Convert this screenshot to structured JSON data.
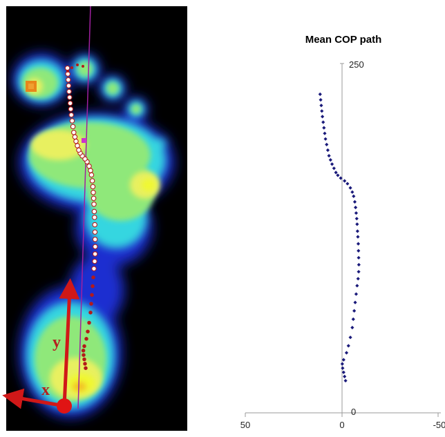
{
  "pressure_map": {
    "axis_label_x": "x",
    "axis_label_y": "y",
    "colors": {
      "background": "#000000",
      "cop_trace": "#b31a1a",
      "axis_line": "#a020a0",
      "marker": "#cc33cc"
    }
  },
  "chart_data": {
    "type": "scatter",
    "title": "Mean COP path",
    "xlabel": "",
    "ylabel": "",
    "x_reversed": true,
    "xlim": [
      50,
      -50
    ],
    "ylim": [
      0,
      250
    ],
    "x_ticks": [
      "50",
      "0",
      "-50"
    ],
    "y_ticks": [
      "0",
      "250"
    ],
    "color": "#1a1a7a",
    "points": [
      [
        -2.0,
        23
      ],
      [
        -1.5,
        26
      ],
      [
        -1.0,
        29
      ],
      [
        -0.5,
        32
      ],
      [
        -0.3,
        35
      ],
      [
        -1.0,
        38
      ],
      [
        -2.5,
        43
      ],
      [
        -3.5,
        48
      ],
      [
        -4.5,
        54
      ],
      [
        -5.5,
        61
      ],
      [
        -6.0,
        67
      ],
      [
        -6.5,
        73
      ],
      [
        -7.0,
        79
      ],
      [
        -7.5,
        85
      ],
      [
        -8.0,
        91
      ],
      [
        -8.5,
        96
      ],
      [
        -8.8,
        101
      ],
      [
        -8.9,
        106
      ],
      [
        -8.8,
        111
      ],
      [
        -8.7,
        116
      ],
      [
        -8.6,
        121
      ],
      [
        -8.4,
        126
      ],
      [
        -8.2,
        130
      ],
      [
        -8.0,
        135
      ],
      [
        -7.8,
        139
      ],
      [
        -7.5,
        143
      ],
      [
        -7.2,
        147
      ],
      [
        -6.8,
        151
      ],
      [
        -6.2,
        155
      ],
      [
        -5.5,
        158
      ],
      [
        -4.5,
        161
      ],
      [
        -3.0,
        164
      ],
      [
        -1.5,
        166
      ],
      [
        0.5,
        168
      ],
      [
        2.0,
        170
      ],
      [
        3.0,
        172
      ],
      [
        4.0,
        175
      ],
      [
        5.0,
        178
      ],
      [
        5.8,
        181
      ],
      [
        6.6,
        184
      ],
      [
        7.2,
        188
      ],
      [
        7.8,
        192
      ],
      [
        8.4,
        196
      ],
      [
        8.8,
        200
      ],
      [
        9.2,
        204
      ],
      [
        9.6,
        208
      ],
      [
        10.0,
        212
      ],
      [
        10.3,
        216
      ],
      [
        10.6,
        220
      ],
      [
        10.9,
        224
      ],
      [
        11.2,
        228
      ]
    ]
  }
}
